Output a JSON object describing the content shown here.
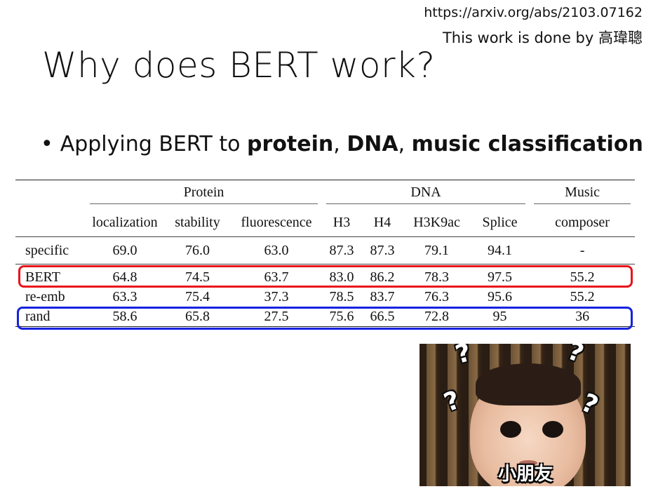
{
  "header": {
    "ref_url": "https://arxiv.org/abs/2103.07162",
    "credit": "This work is done by 高瑋聰"
  },
  "title": "Why does BERT work?",
  "bullet": {
    "marker": "•",
    "prefix": "Applying BERT to ",
    "b1": "protein",
    "sep1": ", ",
    "b2": "DNA",
    "sep2": ", ",
    "b3": "music classification"
  },
  "table": {
    "groups": {
      "protein": "Protein",
      "dna": "DNA",
      "music": "Music"
    },
    "columns": [
      "localization",
      "stability",
      "fluorescence",
      "H3",
      "H4",
      "H3K9ac",
      "Splice",
      "composer"
    ],
    "rows": [
      {
        "label": "specific",
        "values": [
          "69.0",
          "76.0",
          "63.0",
          "87.3",
          "87.3",
          "79.1",
          "94.1",
          "-"
        ]
      },
      {
        "label": "BERT",
        "values": [
          "64.8",
          "74.5",
          "63.7",
          "83.0",
          "86.2",
          "78.3",
          "97.5",
          "55.2"
        ]
      },
      {
        "label": "re-emb",
        "values": [
          "63.3",
          "75.4",
          "37.3",
          "78.5",
          "83.7",
          "76.3",
          "95.6",
          "55.2"
        ]
      },
      {
        "label": "rand",
        "values": [
          "58.6",
          "65.8",
          "27.5",
          "75.6",
          "66.5",
          "72.8",
          "95",
          "36"
        ]
      }
    ],
    "highlight_colors": {
      "bert": "#e8141c",
      "rand": "#1622e0"
    }
  },
  "meme": {
    "caption": "小朋友",
    "marks": [
      "?",
      "?",
      "?",
      "?"
    ]
  }
}
